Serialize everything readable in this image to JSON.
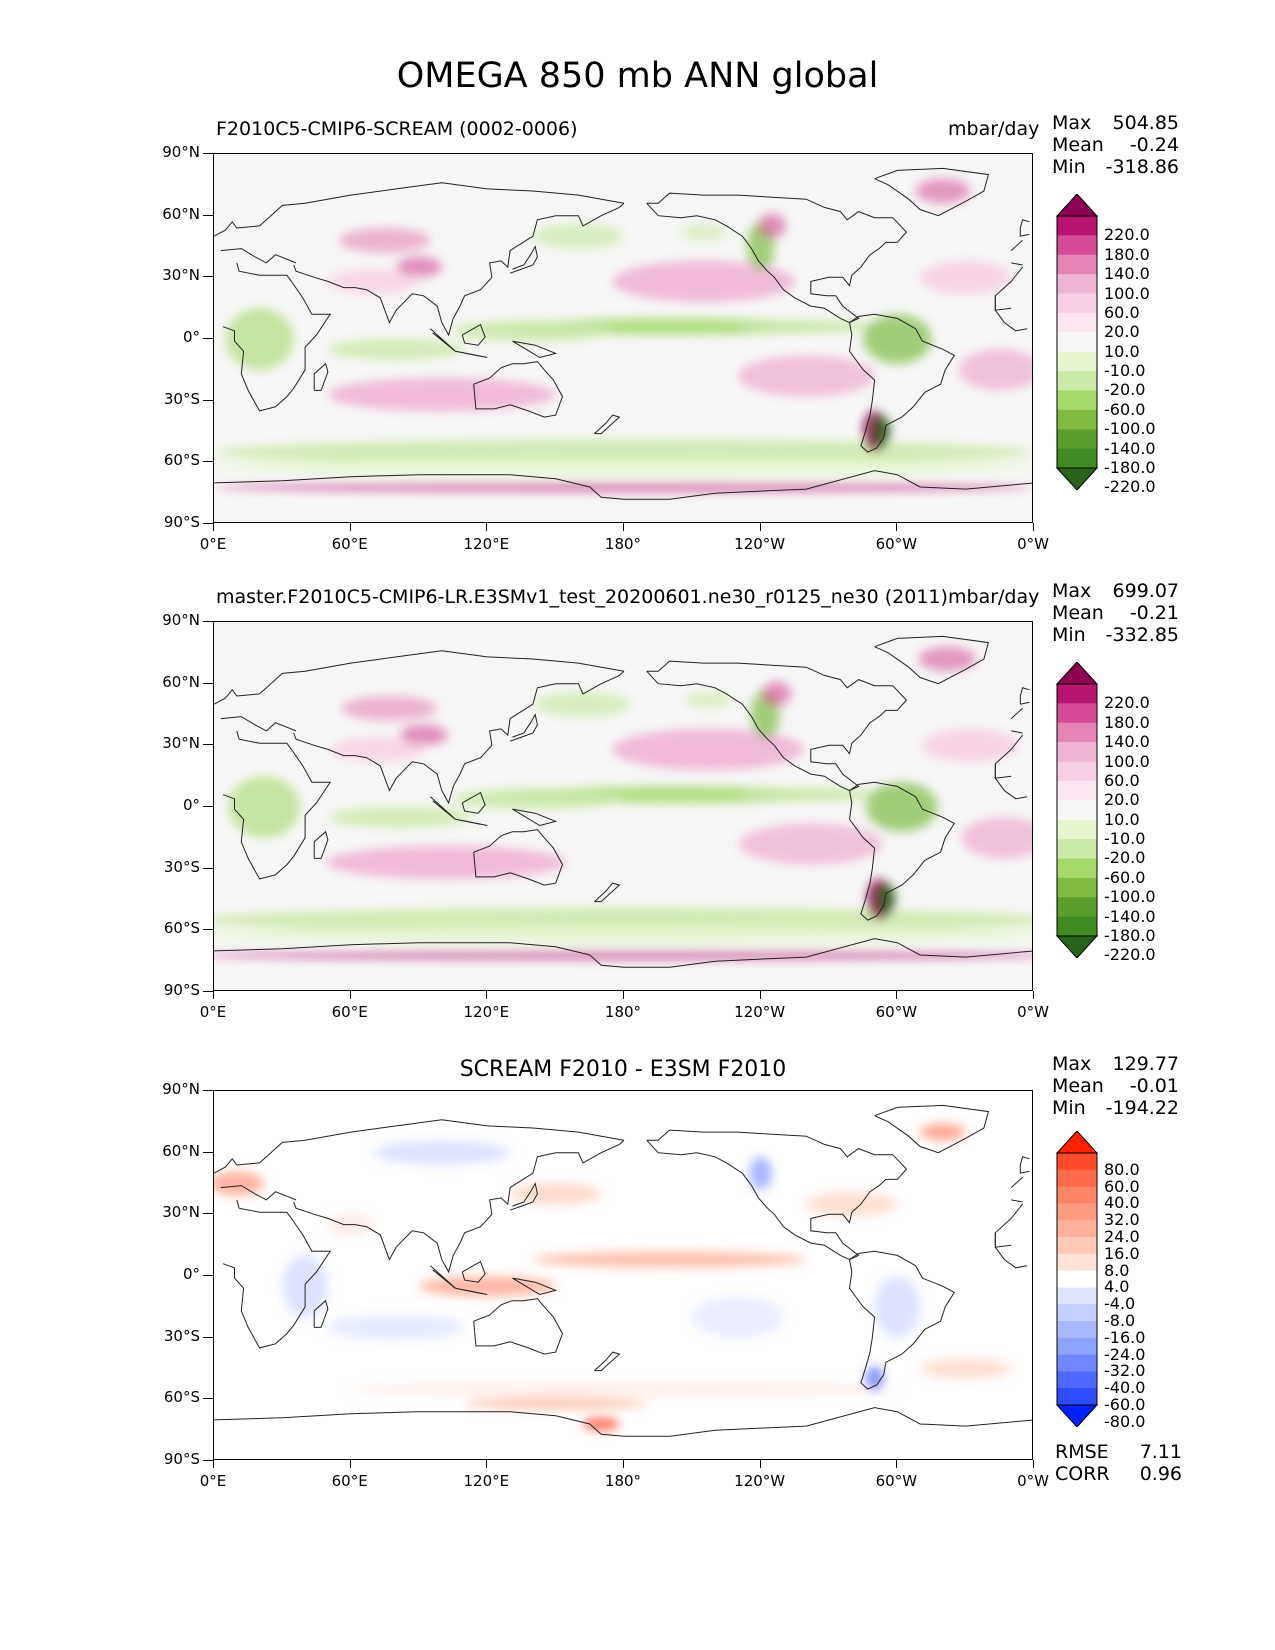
{
  "title": "OMEGA 850 mb ANN global",
  "panels": [
    {
      "title": "F2010C5-CMIP6-SCREAM (0002-0006)",
      "units": "mbar/day",
      "stats": {
        "max": "504.85",
        "mean": "-0.24",
        "min": "-318.86"
      },
      "stat_labels": {
        "max": "Max",
        "mean": "Mean",
        "min": "Min"
      }
    },
    {
      "title": "master.F2010C5-CMIP6-LR.E3SMv1_test_20200601.ne30_r0125_ne30 (2011)",
      "units": "mbar/day",
      "stats": {
        "max": "699.07",
        "mean": "-0.21",
        "min": "-332.85"
      },
      "stat_labels": {
        "max": "Max",
        "mean": "Mean",
        "min": "Min"
      }
    },
    {
      "title": "SCREAM F2010 - E3SM F2010",
      "units": "",
      "stats": {
        "max": "129.77",
        "mean": "-0.01",
        "min": "-194.22"
      },
      "stat_labels": {
        "max": "Max",
        "mean": "Mean",
        "min": "Min"
      },
      "rmse_label": "RMSE",
      "rmse": "7.11",
      "corr_label": "CORR",
      "corr": "0.96"
    }
  ],
  "lat_labels": [
    "90°N",
    "60°N",
    "30°N",
    "0°",
    "30°S",
    "60°S",
    "90°S"
  ],
  "lon_labels": [
    "0°E",
    "60°E",
    "120°E",
    "180°",
    "120°W",
    "60°W",
    "0°W"
  ],
  "colorbar_field": {
    "levels": [
      "220.0",
      "180.0",
      "140.0",
      "100.0",
      "60.0",
      "20.0",
      "10.0",
      "-10.0",
      "-20.0",
      "-60.0",
      "-100.0",
      "-140.0",
      "-180.0",
      "-220.0"
    ],
    "colors": [
      "#8e0152",
      "#b7156f",
      "#d64a96",
      "#e485b6",
      "#f0b4d5",
      "#f7cfe4",
      "#fae5f0",
      "#f7f7f7",
      "#e6f5d0",
      "#cbe9a8",
      "#a6d96a",
      "#7fbc41",
      "#5a9e2e",
      "#3f8a21",
      "#276419"
    ]
  },
  "colorbar_diff": {
    "levels": [
      "80.0",
      "60.0",
      "40.0",
      "32.0",
      "24.0",
      "16.0",
      "8.0",
      "4.0",
      "-4.0",
      "-8.0",
      "-16.0",
      "-24.0",
      "-32.0",
      "-40.0",
      "-60.0",
      "-80.0"
    ],
    "colors": [
      "#ff2200",
      "#ff4a2b",
      "#ff6b4a",
      "#ff8466",
      "#ff9b80",
      "#ffb19c",
      "#ffc9b8",
      "#ffe2d8",
      "#ffffff",
      "#dfe5ff",
      "#c6d0ff",
      "#aab9ff",
      "#8ea2ff",
      "#6f87ff",
      "#4f6aff",
      "#2f4cff",
      "#0022ff"
    ]
  }
}
